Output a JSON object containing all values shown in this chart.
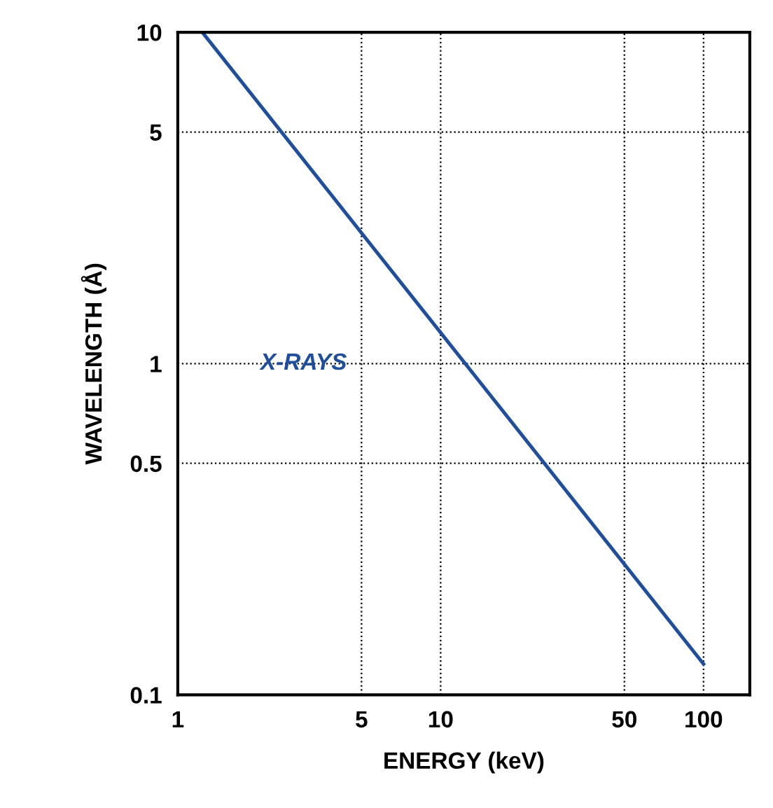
{
  "chart_data": {
    "type": "line",
    "xlabel": "ENERGY (keV)",
    "ylabel": "WAVELENGTH (Å)",
    "x": [
      1.24,
      12.4,
      100
    ],
    "series": [
      {
        "color": "#1f4e9c",
        "values": [
          10,
          1,
          0.124
        ]
      }
    ],
    "log": "xy",
    "xlim": [
      1,
      150
    ],
    "ylim": [
      0.1,
      10
    ],
    "xticks": [
      1,
      5,
      10,
      50,
      100
    ],
    "yticks": [
      0.1,
      0.5,
      1,
      5,
      10
    ],
    "grid": true,
    "line_style": "solid",
    "marker": "none",
    "annotations": [
      "X-RAYS"
    ]
  }
}
